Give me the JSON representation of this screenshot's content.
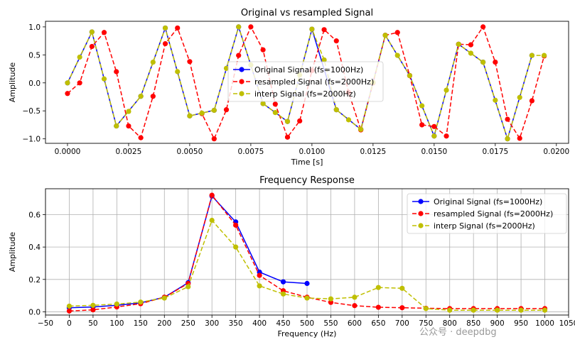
{
  "charts": [
    {
      "chart_data": {
        "type": "line",
        "title": "Original vs resampled Signal",
        "xlabel": "Time [s]",
        "ylabel": "Amplitude",
        "xlim": [
          -0.0009,
          0.0205
        ],
        "ylim": [
          -1.08,
          1.1
        ],
        "xticks": [
          0.0,
          0.0025,
          0.005,
          0.0075,
          0.01,
          0.0125,
          0.015,
          0.0175,
          0.02
        ],
        "xtick_labels": [
          "0.0000",
          "0.0025",
          "0.0050",
          "0.0075",
          "0.0100",
          "0.0125",
          "0.0150",
          "0.0175",
          "0.0200"
        ],
        "yticks": [
          -1.0,
          -0.5,
          0.0,
          0.5,
          1.0
        ],
        "ytick_labels": [
          "−1.0",
          "−0.5",
          "0.0",
          "0.5",
          "1.0"
        ],
        "grid": false,
        "legend_position": "center",
        "series": [
          {
            "name": "Original Signal (fs=1000Hz)",
            "color": "#0000ff",
            "dashed": false,
            "x": [
              0.0,
              0.001,
              0.002,
              0.003,
              0.004,
              0.005,
              0.006,
              0.007,
              0.008,
              0.009,
              0.01,
              0.011,
              0.012,
              0.013,
              0.014,
              0.015,
              0.016,
              0.017,
              0.018,
              0.019
            ],
            "y": [
              0.0,
              0.91,
              -0.77,
              -0.24,
              0.98,
              -0.59,
              -0.49,
              1.0,
              -0.37,
              -0.69,
              0.96,
              -0.48,
              -0.83,
              0.85,
              0.13,
              -0.95,
              0.69,
              0.37,
              -1.0,
              0.49
            ]
          },
          {
            "name": "resampled Signal (fs=2000Hz)",
            "color": "#ff0000",
            "dashed": true,
            "x": [
              0.0,
              0.0005,
              0.001,
              0.0015,
              0.002,
              0.0025,
              0.003,
              0.0035,
              0.004,
              0.0045,
              0.005,
              0.0055,
              0.006,
              0.0065,
              0.007,
              0.0075,
              0.008,
              0.0085,
              0.009,
              0.0095,
              0.01,
              0.0105,
              0.011,
              0.0115,
              0.012,
              0.0125,
              0.013,
              0.0135,
              0.014,
              0.0145,
              0.015,
              0.0155,
              0.016,
              0.0165,
              0.017,
              0.0175,
              0.018,
              0.0185,
              0.019,
              0.0195
            ],
            "y": [
              -0.19,
              0.0,
              0.65,
              0.9,
              0.2,
              -0.77,
              -0.98,
              -0.24,
              0.7,
              0.98,
              0.38,
              -0.55,
              -1.0,
              -0.48,
              0.49,
              1.0,
              0.59,
              -0.38,
              -0.97,
              -0.68,
              0.22,
              0.95,
              0.75,
              -0.17,
              -0.84,
              0.0,
              0.85,
              0.9,
              0.13,
              -0.75,
              -0.78,
              -0.95,
              0.69,
              0.68,
              1.0,
              0.37,
              -0.65,
              -0.99,
              -0.32,
              0.48
            ]
          },
          {
            "name": "interp Signal (fs=2000Hz)",
            "color": "#bfbf00",
            "dashed": true,
            "x": [
              0.0,
              0.0005,
              0.001,
              0.0015,
              0.002,
              0.0025,
              0.003,
              0.0035,
              0.004,
              0.0045,
              0.005,
              0.0055,
              0.006,
              0.0065,
              0.007,
              0.0075,
              0.008,
              0.0085,
              0.009,
              0.0095,
              0.01,
              0.0105,
              0.011,
              0.0115,
              0.012,
              0.0125,
              0.013,
              0.0135,
              0.014,
              0.0145,
              0.015,
              0.0155,
              0.016,
              0.0165,
              0.017,
              0.0175,
              0.018,
              0.0185,
              0.019,
              0.0195
            ],
            "y": [
              0.0,
              0.46,
              0.91,
              0.07,
              -0.77,
              -0.51,
              -0.24,
              0.37,
              0.98,
              0.2,
              -0.59,
              -0.54,
              -0.49,
              0.26,
              1.0,
              0.32,
              -0.37,
              -0.53,
              -0.69,
              0.14,
              0.96,
              0.41,
              -0.48,
              -0.66,
              -0.83,
              0.01,
              0.85,
              0.49,
              0.13,
              -0.41,
              -0.95,
              -0.13,
              0.69,
              0.53,
              0.37,
              -0.31,
              -1.0,
              -0.26,
              0.49,
              0.49
            ]
          }
        ]
      }
    },
    {
      "chart_data": {
        "type": "line",
        "title": "Frequency Response",
        "xlabel": "Frequency (Hz)",
        "ylabel": "Amplitude",
        "xlim": [
          -50,
          1050
        ],
        "ylim": [
          -0.02,
          0.76
        ],
        "xticks": [
          -50,
          0,
          50,
          100,
          150,
          200,
          250,
          300,
          350,
          400,
          450,
          500,
          550,
          600,
          650,
          700,
          750,
          800,
          850,
          900,
          950,
          1000,
          1050
        ],
        "xtick_labels": [
          "−50",
          "0",
          "50",
          "100",
          "150",
          "200",
          "250",
          "300",
          "350",
          "400",
          "450",
          "500",
          "550",
          "600",
          "650",
          "700",
          "750",
          "800",
          "850",
          "900",
          "950",
          "1000",
          "1050"
        ],
        "yticks": [
          0.0,
          0.2,
          0.4,
          0.6
        ],
        "ytick_labels": [
          "0.0",
          "0.2",
          "0.4",
          "0.6"
        ],
        "grid": true,
        "legend_position": "upper right",
        "series": [
          {
            "name": "Original Signal (fs=1000Hz)",
            "color": "#0000ff",
            "dashed": false,
            "x": [
              0,
              50,
              100,
              150,
              200,
              250,
              300,
              350,
              400,
              450,
              500
            ],
            "y": [
              0.025,
              0.03,
              0.04,
              0.055,
              0.09,
              0.18,
              0.715,
              0.555,
              0.245,
              0.185,
              0.175
            ]
          },
          {
            "name": "resampled Signal (fs=2000Hz)",
            "color": "#ff0000",
            "dashed": true,
            "x": [
              0,
              50,
              100,
              150,
              200,
              250,
              300,
              350,
              400,
              450,
              500,
              550,
              600,
              650,
              700,
              750,
              800,
              850,
              900,
              950,
              1000
            ],
            "y": [
              0.005,
              0.012,
              0.03,
              0.05,
              0.09,
              0.175,
              0.72,
              0.535,
              0.225,
              0.13,
              0.09,
              0.058,
              0.038,
              0.028,
              0.025,
              0.022,
              0.02,
              0.02,
              0.02,
              0.02,
              0.02
            ]
          },
          {
            "name": "interp Signal (fs=2000Hz)",
            "color": "#bfbf00",
            "dashed": true,
            "x": [
              0,
              50,
              100,
              150,
              200,
              250,
              300,
              350,
              400,
              450,
              500,
              550,
              600,
              650,
              700,
              750,
              800,
              850,
              900,
              950,
              1000
            ],
            "y": [
              0.035,
              0.04,
              0.048,
              0.06,
              0.085,
              0.155,
              0.565,
              0.4,
              0.16,
              0.11,
              0.085,
              0.08,
              0.09,
              0.15,
              0.145,
              0.02,
              0.01,
              0.01,
              0.01,
              0.01,
              0.01
            ]
          }
        ]
      }
    }
  ],
  "watermark": "公众号 · deepdbg"
}
